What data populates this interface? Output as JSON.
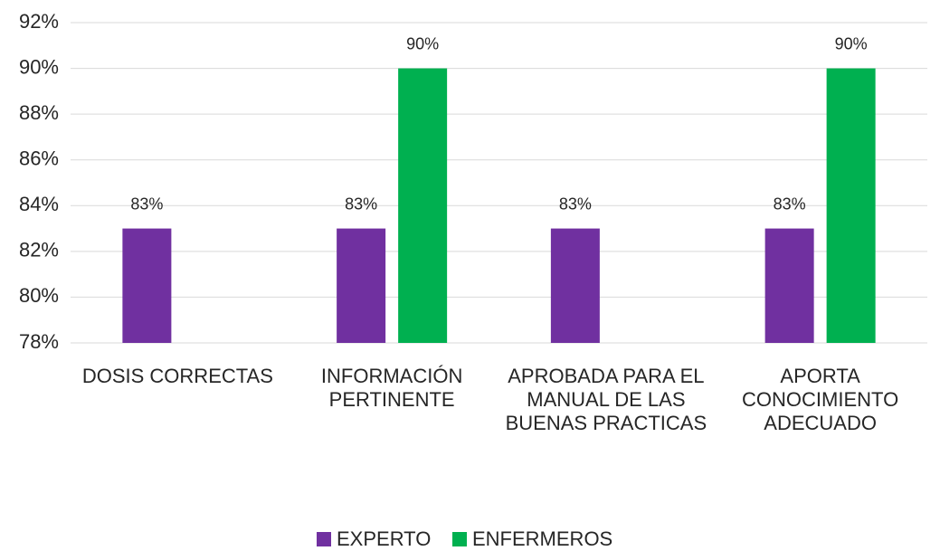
{
  "chart_data": {
    "type": "bar",
    "categories": [
      "DOSIS CORRECTAS",
      "INFORMACIÓN PERTINENTE",
      "APROBADA PARA EL MANUAL DE LAS BUENAS PRACTICAS",
      "APORTA CONOCIMIENTO ADECUADO"
    ],
    "series": [
      {
        "name": "EXPERTO",
        "color": "#7030a0",
        "values": [
          83,
          83,
          83,
          83
        ],
        "value_labels": [
          "83%",
          "83%",
          "83%",
          "83%"
        ]
      },
      {
        "name": "ENFERMEROS",
        "color": "#00b050",
        "values": [
          null,
          90,
          null,
          90
        ],
        "value_labels": [
          null,
          "90%",
          null,
          "90%"
        ]
      }
    ],
    "ylim": [
      78,
      92
    ],
    "yticks": [
      {
        "value": 78,
        "label": "78%"
      },
      {
        "value": 80,
        "label": "80%"
      },
      {
        "value": 82,
        "label": "82%"
      },
      {
        "value": 84,
        "label": "84%"
      },
      {
        "value": 86,
        "label": "86%"
      },
      {
        "value": 88,
        "label": "88%"
      },
      {
        "value": 90,
        "label": "90%"
      },
      {
        "value": 92,
        "label": "92%"
      }
    ],
    "grid": true,
    "legend": "bottom"
  }
}
